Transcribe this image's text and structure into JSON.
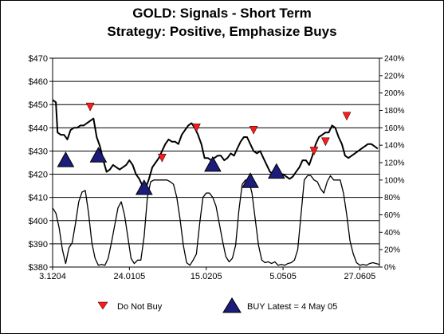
{
  "chart_data": {
    "type": "line",
    "title": "GOLD: Signals - Short Term",
    "subtitle": "Strategy: Positive, Emphasize Buys",
    "left_axis": {
      "ylim": [
        380,
        470
      ],
      "ticks": [
        380,
        390,
        400,
        410,
        420,
        430,
        440,
        450,
        460,
        470
      ],
      "format": "$"
    },
    "right_axis": {
      "ylim": [
        0,
        240
      ],
      "ticks": [
        0,
        20,
        40,
        60,
        80,
        100,
        120,
        140,
        160,
        180,
        200,
        220,
        240
      ],
      "format": "%"
    },
    "x_tick_labels": [
      "3.1204",
      "24.0105",
      "15.0205",
      "5.0505",
      "27.0605"
    ],
    "grid": "horizontal",
    "series": [
      {
        "axis": "left",
        "x": [
          0,
          2,
          3,
          5,
          7,
          9,
          11,
          13,
          15,
          17,
          19,
          21,
          23,
          25,
          27,
          29,
          31,
          33,
          35,
          37,
          39,
          41,
          43,
          45,
          47,
          49,
          51,
          53,
          55,
          57,
          59,
          61,
          63,
          65,
          67,
          69,
          71,
          73,
          75,
          77,
          79,
          81,
          83,
          85,
          87,
          89,
          91,
          93,
          95,
          97,
          99,
          101,
          103,
          105,
          107,
          109,
          111,
          113,
          115,
          117,
          119,
          121,
          123,
          125,
          127,
          129,
          131,
          133,
          135,
          137,
          139,
          141,
          143,
          145,
          147,
          149,
          151,
          153,
          155,
          157,
          159,
          161,
          163,
          165,
          167,
          169,
          171,
          173,
          175,
          177,
          179,
          181,
          183,
          185,
          187,
          189,
          191,
          193,
          195,
          197,
          199
        ],
        "values": [
          452,
          451,
          438,
          437,
          437,
          435,
          439,
          440,
          440,
          441,
          441,
          442,
          443,
          444,
          436,
          432,
          426,
          421,
          422,
          424,
          423,
          422,
          423,
          424,
          426,
          424,
          420,
          418,
          415,
          414,
          418,
          423,
          425,
          427,
          430,
          433,
          435,
          434,
          434,
          433,
          437,
          439,
          441,
          442,
          440,
          437,
          433,
          427,
          427,
          426,
          427,
          428,
          428,
          426,
          427,
          429,
          428,
          431,
          434,
          436,
          436,
          433,
          430,
          429,
          430,
          427,
          424,
          421,
          420,
          420,
          420,
          420,
          419,
          418,
          419,
          421,
          423,
          426,
          426,
          424,
          428,
          433,
          436,
          437,
          438,
          438,
          441,
          440,
          436,
          433,
          428,
          427,
          428,
          429,
          430,
          431,
          432,
          433,
          433,
          432,
          431
        ]
      },
      {
        "axis": "right",
        "x": [
          0,
          2,
          4,
          6,
          8,
          10,
          12,
          14,
          16,
          18,
          20,
          22,
          24,
          26,
          28,
          30,
          32,
          34,
          36,
          38,
          40,
          42,
          44,
          46,
          48,
          50,
          52,
          54,
          56,
          58,
          60,
          62,
          64,
          66,
          68,
          70,
          72,
          74,
          76,
          78,
          80,
          82,
          84,
          86,
          88,
          90,
          92,
          94,
          96,
          98,
          100,
          102,
          104,
          106,
          108,
          110,
          112,
          114,
          116,
          118,
          120,
          122,
          124,
          126,
          128,
          130,
          132,
          134,
          136,
          138,
          140,
          142,
          144,
          146,
          148,
          150,
          152,
          154,
          156,
          158,
          160,
          162,
          164,
          166,
          168,
          170,
          172,
          174,
          176,
          178,
          180,
          182,
          184,
          186,
          188,
          190,
          192,
          194,
          196,
          198,
          200
        ],
        "values": [
          68,
          62,
          45,
          20,
          4,
          22,
          28,
          50,
          75,
          86,
          88,
          62,
          28,
          10,
          2,
          3,
          2,
          10,
          28,
          48,
          68,
          75,
          60,
          35,
          10,
          4,
          8,
          8,
          35,
          80,
          98,
          100,
          100,
          100,
          100,
          100,
          98,
          95,
          80,
          55,
          25,
          5,
          2,
          8,
          15,
          50,
          80,
          85,
          85,
          80,
          70,
          50,
          30,
          12,
          6,
          10,
          25,
          65,
          95,
          100,
          100,
          85,
          55,
          25,
          8,
          5,
          6,
          4,
          6,
          2,
          3,
          2,
          4,
          5,
          8,
          20,
          60,
          100,
          105,
          105,
          100,
          98,
          90,
          85,
          98,
          105,
          100,
          100,
          100,
          85,
          60,
          30,
          15,
          5,
          2,
          3,
          2,
          4,
          5,
          4,
          3
        ]
      }
    ],
    "signals": {
      "buy": [
        {
          "x": 8,
          "y": 426
        },
        {
          "x": 28,
          "y": 428
        },
        {
          "x": 56,
          "y": 414
        },
        {
          "x": 98,
          "y": 424
        },
        {
          "x": 121,
          "y": 417
        },
        {
          "x": 137,
          "y": 421
        }
      ],
      "do_not_buy": [
        {
          "x": 23,
          "y": 449
        },
        {
          "x": 67,
          "y": 427
        },
        {
          "x": 88,
          "y": 440
        },
        {
          "x": 123,
          "y": 439
        },
        {
          "x": 160,
          "y": 430
        },
        {
          "x": 167,
          "y": 434
        },
        {
          "x": 180,
          "y": 445
        }
      ]
    },
    "legend": {
      "do_not_buy_label": "Do Not Buy",
      "buy_label": "BUY Latest = 4 May 05",
      "position": "bottom"
    },
    "colors": {
      "buy": "#1c1c7a",
      "do_not_buy": "#ff1a1a",
      "line": "#000000",
      "grid": "#000000"
    }
  }
}
